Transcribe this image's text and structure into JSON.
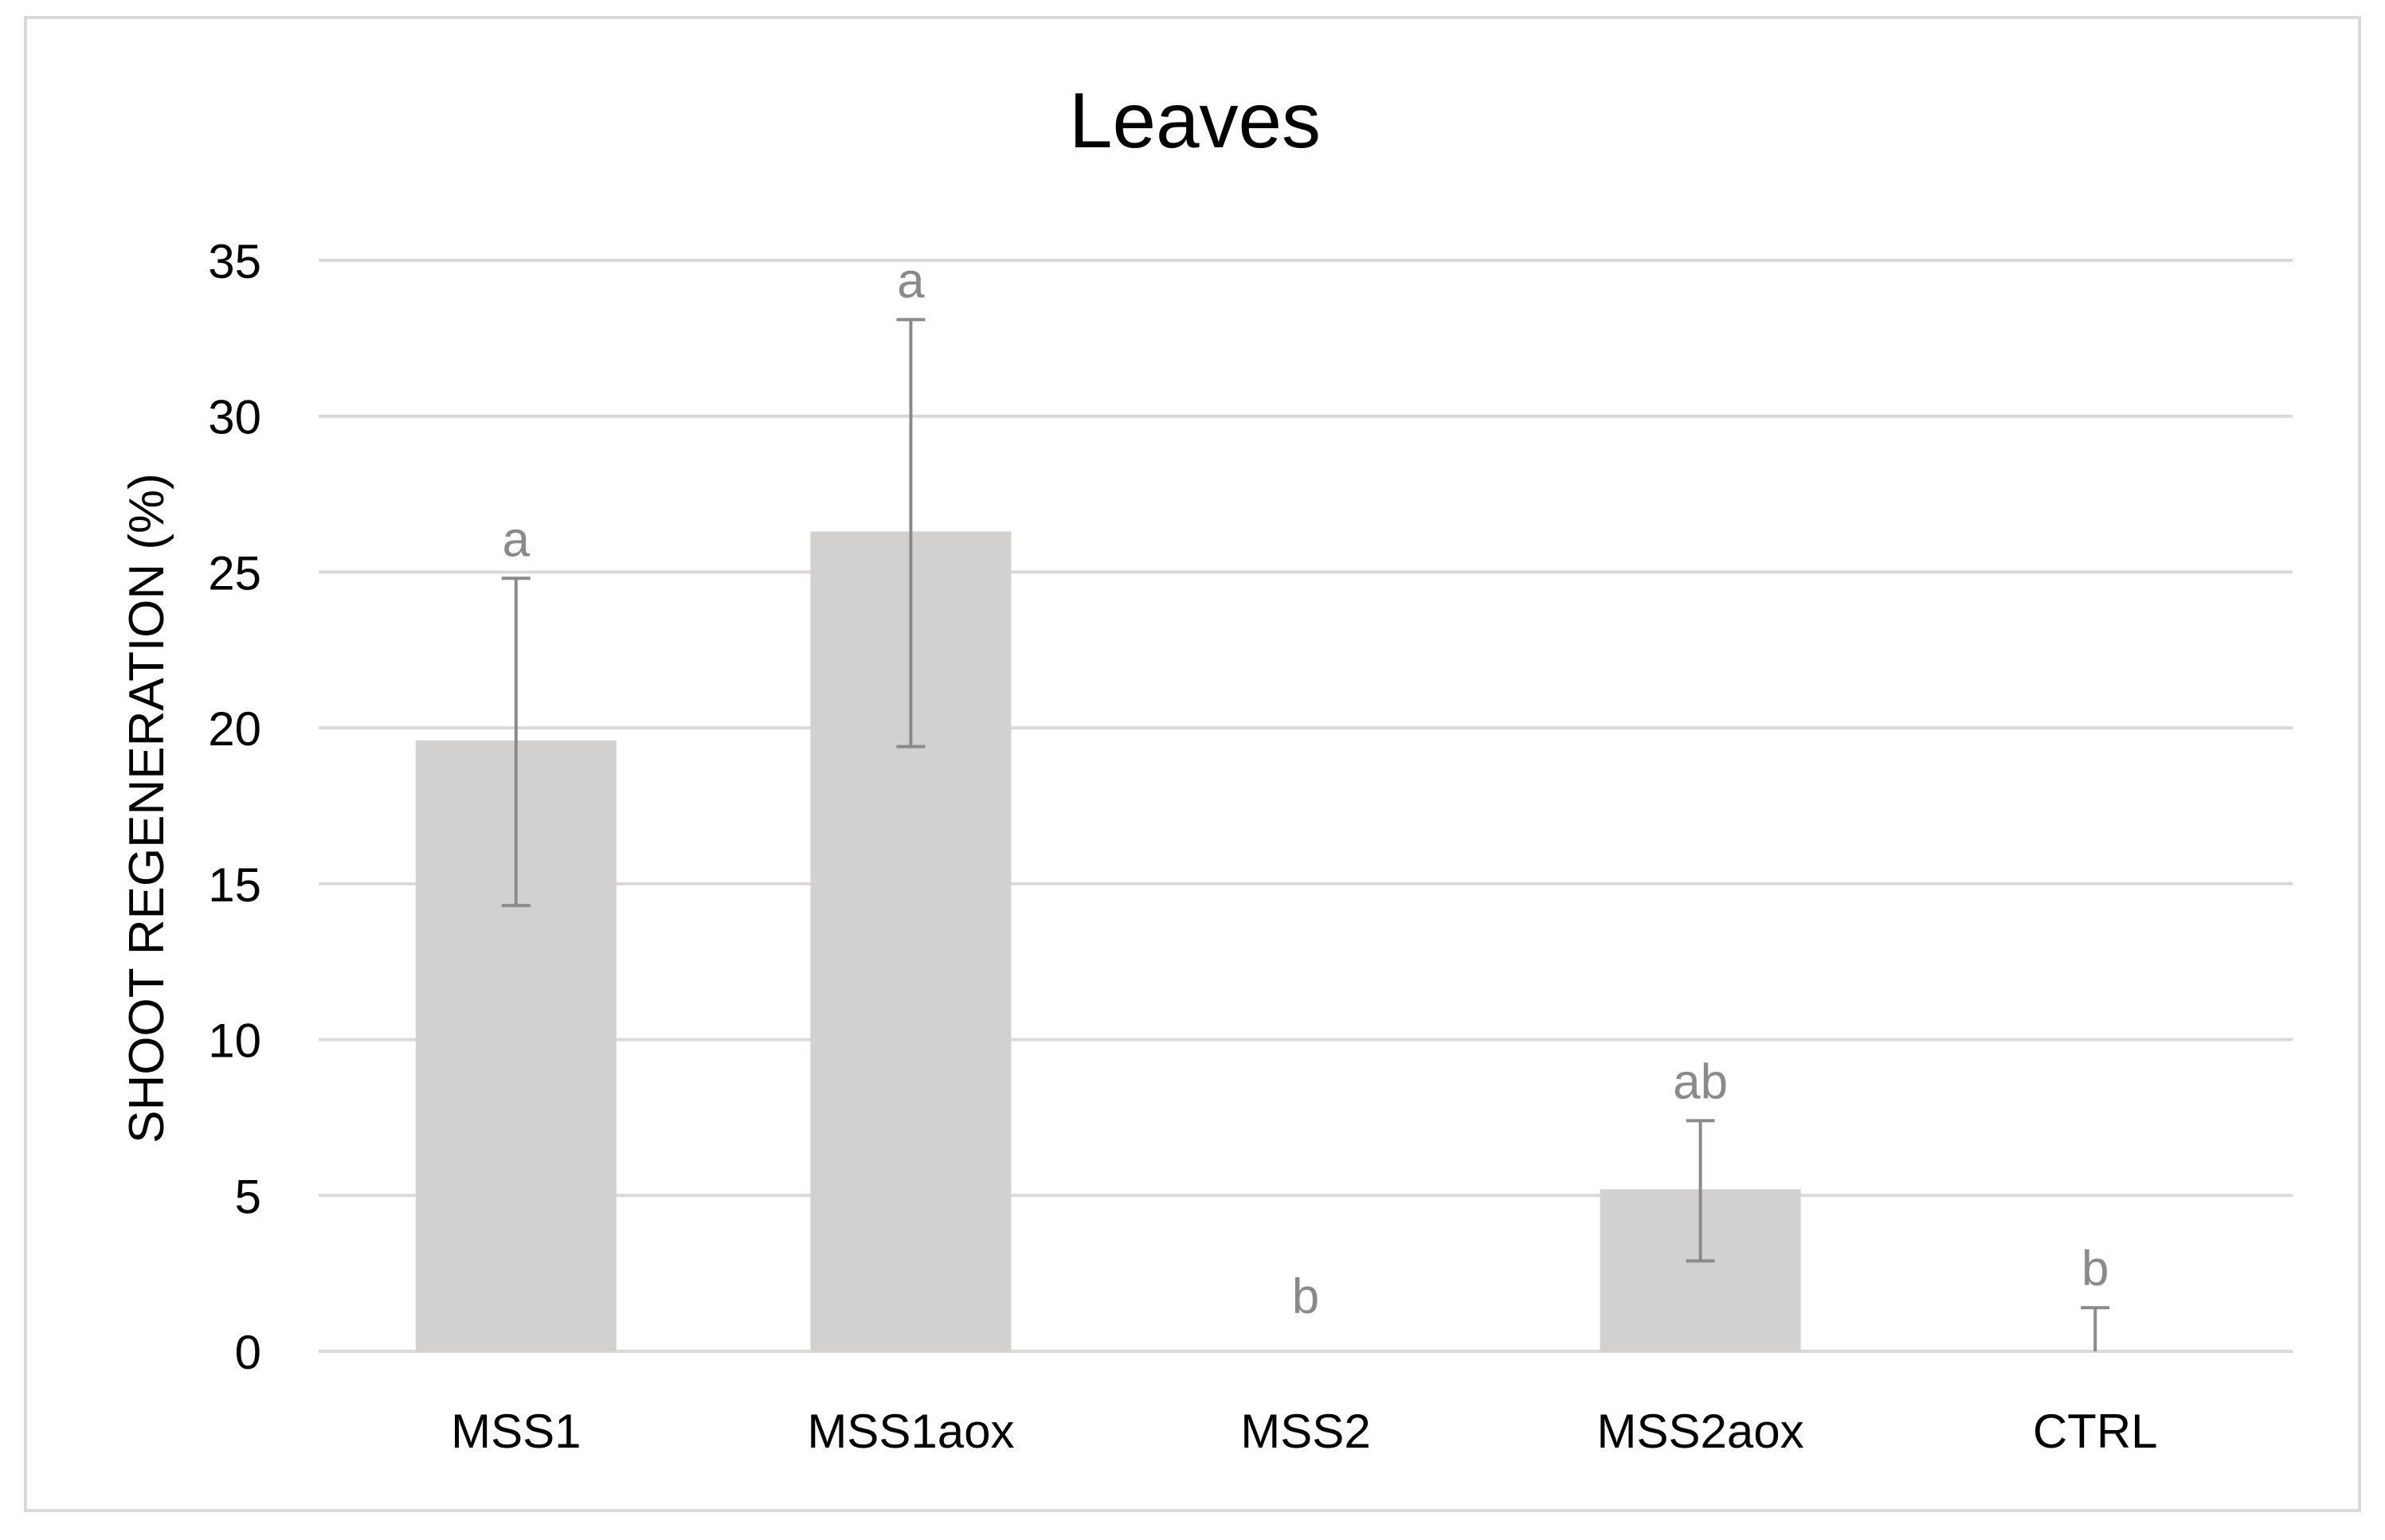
{
  "chart_data": {
    "type": "bar",
    "title": "Leaves",
    "ylabel": "SHOOT REGENERATION (%)",
    "xlabel": "",
    "categories": [
      "MSS1",
      "MSS1aox",
      "MSS2",
      "MSS2aox",
      "CTRL"
    ],
    "values": [
      19.6,
      26.3,
      0,
      5.2,
      0
    ],
    "error_bars": [
      {
        "low": 14.3,
        "high": 24.8
      },
      {
        "low": 19.4,
        "high": 33.1
      },
      null,
      {
        "low": 2.9,
        "high": 7.4
      },
      {
        "low": 0,
        "high": 1.4
      }
    ],
    "significance_letters": [
      "a",
      "a",
      "b",
      "ab",
      "b"
    ],
    "ylim": [
      0,
      35
    ],
    "yticks": [
      "0",
      "5",
      "10",
      "15",
      "20",
      "25",
      "30",
      "35"
    ],
    "grid": true,
    "legend": "none",
    "colors": {
      "bar": "#d3d0d0",
      "error_bar": "#8a8a8a",
      "letter": "#8a8a8a",
      "grid": "#d9d9d9",
      "text": "#000000",
      "frame": "#d9d9d9"
    }
  }
}
